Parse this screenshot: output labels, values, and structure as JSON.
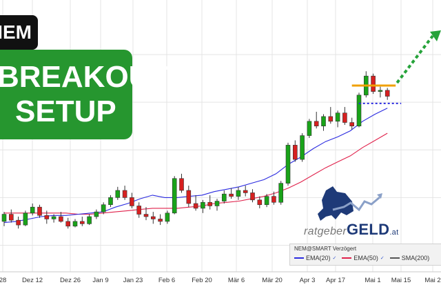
{
  "labels": {
    "ticker": "NEM",
    "setup_line1": "BREAKOUT",
    "setup_line2": "SETUP"
  },
  "legend": {
    "title": "NEM@SMART Verzögert",
    "items": [
      "EMA(20)",
      "EMA(50)",
      "SMA(200)"
    ]
  },
  "brand": {
    "part1": "ratgeber",
    "part2": "GELD",
    "part3": ".at"
  },
  "colors": {
    "up": "#19a319",
    "down": "#d62020",
    "ema20": "#2a2ae0",
    "ema50": "#e0204a",
    "breakout_line": "#f0a000",
    "support_line": "#2a2ae0",
    "arrow": "#26a33a",
    "setup_bg": "#26962f"
  },
  "chart_data": {
    "type": "candlestick",
    "x_tick_labels": [
      "28",
      "Dez 12",
      "Dez 26",
      "Jan 9",
      "Jan 23",
      "Feb 6",
      "Feb 20",
      "Mär 6",
      "Mär 20",
      "Apr 3",
      "Apr 17",
      "Mai 1",
      "Mai 15",
      "Mai 2"
    ],
    "series": [
      {
        "name": "EMA(20)",
        "values": [
          21.9,
          22.0,
          22.2,
          22.4,
          22.5,
          22.5,
          22.6,
          22.7,
          22.8,
          23.2,
          23.5,
          23.9,
          24.2,
          24.0,
          24.0,
          24.1,
          24.2,
          24.5,
          24.7,
          24.9,
          25.2,
          25.5,
          26.0,
          26.8,
          27.4,
          28.1,
          28.7,
          29.1,
          29.6,
          30.4,
          31.0,
          31.5
        ]
      },
      {
        "name": "EMA(50)",
        "values": [
          22.7,
          22.7,
          22.7,
          22.7,
          22.7,
          22.7,
          22.6,
          22.6,
          22.7,
          22.8,
          22.9,
          23.0,
          23.1,
          23.1,
          23.1,
          23.2,
          23.3,
          23.5,
          23.6,
          23.7,
          23.9,
          24.1,
          24.4,
          24.8,
          25.3,
          25.9,
          26.5,
          27.0,
          27.5,
          28.2,
          28.8,
          29.4
        ]
      }
    ],
    "candles": [
      [
        22.0,
        22.8,
        21.6,
        22.6
      ],
      [
        22.6,
        23.0,
        21.9,
        22.1
      ],
      [
        22.1,
        22.4,
        21.4,
        21.7
      ],
      [
        21.7,
        22.9,
        21.6,
        22.7
      ],
      [
        22.7,
        23.5,
        22.5,
        23.2
      ],
      [
        23.2,
        23.4,
        22.3,
        22.5
      ],
      [
        22.5,
        22.9,
        21.8,
        22.2
      ],
      [
        22.2,
        22.6,
        21.9,
        22.4
      ],
      [
        22.4,
        22.8,
        21.9,
        22.0
      ],
      [
        22.0,
        22.3,
        21.4,
        21.6
      ],
      [
        21.6,
        22.2,
        21.5,
        22.0
      ],
      [
        22.0,
        22.4,
        21.6,
        21.8
      ],
      [
        21.8,
        22.6,
        21.7,
        22.4
      ],
      [
        22.4,
        23.0,
        22.2,
        22.8
      ],
      [
        22.8,
        23.6,
        22.6,
        23.4
      ],
      [
        23.4,
        24.2,
        23.2,
        24.0
      ],
      [
        24.0,
        24.9,
        23.8,
        24.6
      ],
      [
        24.6,
        25.0,
        23.8,
        24.0
      ],
      [
        24.0,
        24.4,
        23.1,
        23.3
      ],
      [
        23.3,
        23.6,
        22.3,
        22.6
      ],
      [
        22.6,
        23.2,
        22.1,
        22.4
      ],
      [
        22.4,
        22.8,
        21.8,
        22.2
      ],
      [
        22.2,
        22.6,
        21.7,
        22.0
      ],
      [
        22.0,
        22.9,
        21.8,
        22.7
      ],
      [
        22.7,
        25.8,
        22.6,
        25.6
      ],
      [
        25.6,
        26.0,
        24.4,
        24.6
      ],
      [
        24.6,
        25.0,
        23.2,
        23.5
      ],
      [
        23.5,
        24.2,
        22.9,
        23.1
      ],
      [
        23.1,
        23.8,
        22.7,
        23.6
      ],
      [
        23.6,
        24.2,
        23.0,
        23.3
      ],
      [
        23.3,
        23.9,
        22.9,
        23.7
      ],
      [
        23.7,
        24.6,
        23.5,
        24.3
      ],
      [
        24.3,
        24.8,
        23.9,
        24.1
      ],
      [
        24.1,
        24.9,
        23.8,
        24.6
      ],
      [
        24.6,
        25.0,
        24.1,
        24.4
      ],
      [
        24.4,
        24.7,
        23.6,
        23.8
      ],
      [
        23.8,
        24.1,
        23.1,
        23.4
      ],
      [
        23.4,
        24.3,
        23.2,
        24.1
      ],
      [
        24.1,
        24.5,
        23.4,
        23.6
      ],
      [
        23.6,
        25.4,
        23.4,
        25.2
      ],
      [
        25.2,
        28.6,
        25.0,
        28.4
      ],
      [
        28.4,
        28.8,
        27.0,
        27.2
      ],
      [
        27.2,
        29.4,
        27.0,
        29.2
      ],
      [
        29.2,
        30.6,
        29.0,
        30.4
      ],
      [
        30.4,
        31.2,
        29.8,
        30.0
      ],
      [
        30.0,
        31.0,
        29.6,
        30.8
      ],
      [
        30.8,
        31.6,
        30.2,
        30.4
      ],
      [
        30.4,
        31.3,
        29.9,
        31.1
      ],
      [
        31.1,
        31.6,
        30.1,
        30.3
      ],
      [
        30.3,
        30.7,
        29.7,
        30.0
      ],
      [
        30.0,
        32.8,
        29.9,
        32.6
      ],
      [
        32.6,
        34.6,
        32.4,
        34.2
      ],
      [
        34.2,
        34.4,
        32.7,
        32.9
      ],
      [
        32.9,
        33.3,
        32.4,
        33.0
      ],
      [
        33.0,
        33.2,
        32.2,
        32.5
      ]
    ],
    "annotations": {
      "breakout_level": 33.4,
      "support_level": 31.9
    },
    "grid": true
  }
}
